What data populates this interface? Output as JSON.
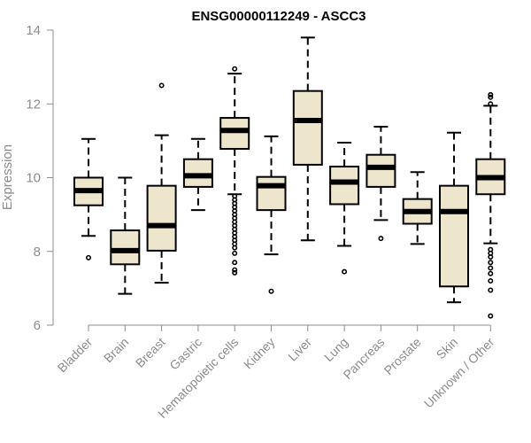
{
  "chart_data": {
    "type": "boxplot",
    "title": "ENSG00000112249 - ASCC3",
    "ylabel": "Expression",
    "xlabel": "",
    "ylim": [
      6,
      14
    ],
    "yticks": [
      6,
      8,
      10,
      12,
      14
    ],
    "grid": false,
    "legend": "none",
    "colors": {
      "box_fill": "#ede6cc",
      "box_stroke": "#000000",
      "axis": "#8c8c8c"
    },
    "categories": [
      "Bladder",
      "Brain",
      "Breast",
      "Gastric",
      "Hematopoietic cells",
      "Kidney",
      "Liver",
      "Lung",
      "Pancreas",
      "Prostate",
      "Skin",
      "Unknown / Other"
    ],
    "boxes": [
      {
        "whisker_low": 8.42,
        "q1": 9.25,
        "median": 9.65,
        "q3": 10.0,
        "whisker_high": 11.05,
        "outliers": [
          7.83
        ]
      },
      {
        "whisker_low": 6.85,
        "q1": 7.65,
        "median": 8.02,
        "q3": 8.57,
        "whisker_high": 10.0,
        "outliers": []
      },
      {
        "whisker_low": 7.15,
        "q1": 8.02,
        "median": 8.7,
        "q3": 9.78,
        "whisker_high": 11.15,
        "outliers": [
          12.5
        ]
      },
      {
        "whisker_low": 9.12,
        "q1": 9.75,
        "median": 10.05,
        "q3": 10.5,
        "whisker_high": 11.05,
        "outliers": []
      },
      {
        "whisker_low": 9.55,
        "q1": 10.78,
        "median": 11.28,
        "q3": 11.62,
        "whisker_high": 12.82,
        "outliers": [
          12.95,
          9.5,
          9.4,
          9.3,
          9.2,
          9.1,
          9.0,
          8.9,
          8.8,
          8.7,
          8.6,
          8.5,
          8.4,
          8.3,
          8.2,
          8.1,
          7.95,
          7.7,
          7.5,
          7.42
        ]
      },
      {
        "whisker_low": 7.92,
        "q1": 9.12,
        "median": 9.78,
        "q3": 10.02,
        "whisker_high": 11.12,
        "outliers": [
          6.92
        ]
      },
      {
        "whisker_low": 8.3,
        "q1": 10.35,
        "median": 11.55,
        "q3": 12.35,
        "whisker_high": 13.8,
        "outliers": []
      },
      {
        "whisker_low": 8.15,
        "q1": 9.28,
        "median": 9.88,
        "q3": 10.3,
        "whisker_high": 10.95,
        "outliers": [
          7.45
        ]
      },
      {
        "whisker_low": 8.85,
        "q1": 9.75,
        "median": 10.28,
        "q3": 10.62,
        "whisker_high": 11.38,
        "outliers": [
          8.35
        ]
      },
      {
        "whisker_low": 8.2,
        "q1": 8.75,
        "median": 9.08,
        "q3": 9.42,
        "whisker_high": 10.15,
        "outliers": []
      },
      {
        "whisker_low": 6.62,
        "q1": 7.05,
        "median": 9.08,
        "q3": 9.78,
        "whisker_high": 11.22,
        "outliers": []
      },
      {
        "whisker_low": 8.22,
        "q1": 9.55,
        "median": 10.0,
        "q3": 10.5,
        "whisker_high": 11.95,
        "outliers": [
          12.25,
          12.18,
          12.0,
          8.05,
          7.95,
          7.85,
          7.7,
          7.55,
          7.4,
          7.2,
          6.95,
          6.25
        ]
      }
    ]
  }
}
